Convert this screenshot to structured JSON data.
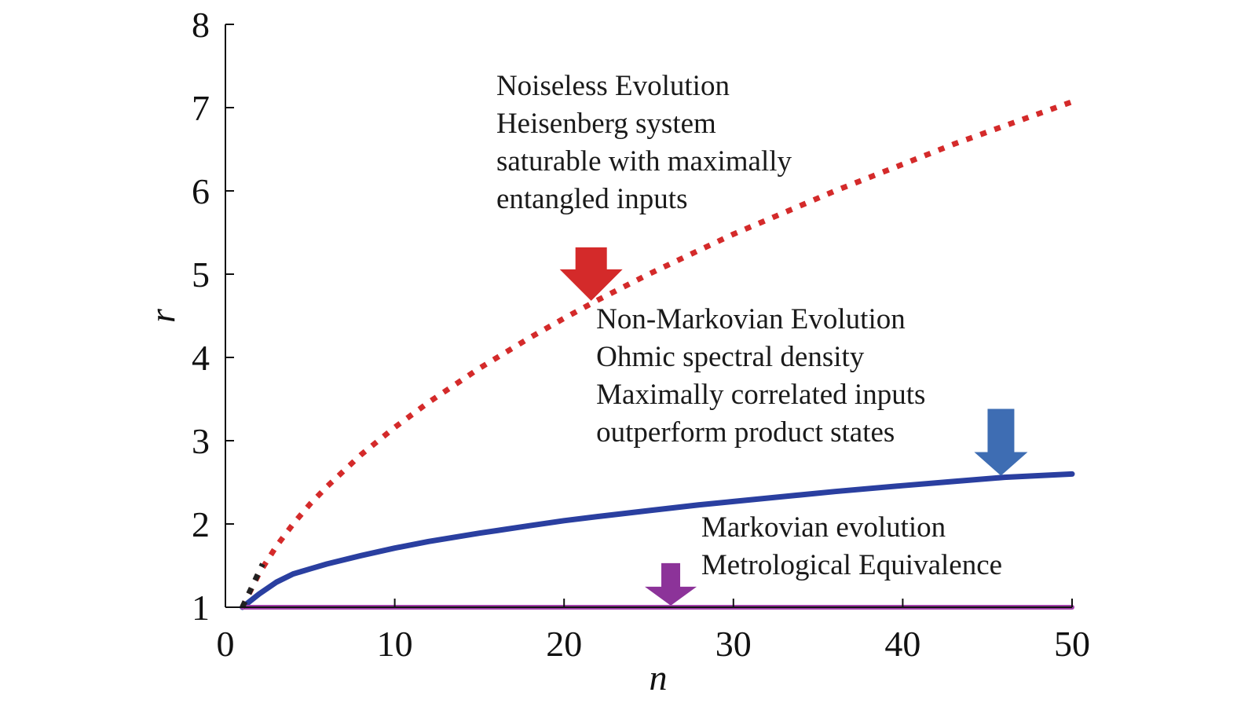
{
  "chart_data": {
    "type": "line",
    "title": "",
    "xlabel": "n",
    "ylabel": "r",
    "xlim": [
      0,
      50
    ],
    "ylim": [
      1,
      8
    ],
    "x_ticks": [
      "0",
      "10",
      "20",
      "30",
      "40",
      "50"
    ],
    "y_ticks": [
      "1",
      "2",
      "3",
      "4",
      "5",
      "6",
      "7",
      "8"
    ],
    "grid": false,
    "series": [
      {
        "style": "dotted",
        "color": "#d42a2a",
        "x": [
          1,
          2,
          3,
          4,
          5,
          6,
          8,
          10,
          12,
          15,
          18,
          20,
          22,
          25,
          28,
          30,
          33,
          36,
          40,
          43,
          46,
          50
        ],
        "y": [
          1.0,
          1.41,
          1.73,
          2.0,
          2.24,
          2.45,
          2.83,
          3.16,
          3.46,
          3.87,
          4.24,
          4.47,
          4.69,
          5.0,
          5.29,
          5.48,
          5.74,
          6.0,
          6.32,
          6.56,
          6.78,
          7.07
        ]
      },
      {
        "style": "solid",
        "color": "#2a3fa0",
        "x": [
          1,
          2,
          3,
          4,
          5,
          6,
          8,
          10,
          12,
          15,
          18,
          20,
          22,
          25,
          28,
          30,
          33,
          36,
          40,
          43,
          46,
          50
        ],
        "y": [
          1.0,
          1.16,
          1.3,
          1.4,
          1.46,
          1.52,
          1.62,
          1.71,
          1.79,
          1.89,
          1.98,
          2.04,
          2.09,
          2.16,
          2.23,
          2.27,
          2.33,
          2.39,
          2.46,
          2.51,
          2.56,
          2.6
        ]
      },
      {
        "style": "solid",
        "color": "#a040a8",
        "x": [
          1,
          50
        ],
        "y": [
          1.0,
          1.0
        ]
      },
      {
        "style": "dotted",
        "color": "#222222",
        "x": [
          1,
          2.2
        ],
        "y": [
          1.0,
          1.52
        ]
      }
    ],
    "annotations": [
      {
        "lines": [
          "Noiseless Evolution",
          "Heisenberg system",
          "saturable with maximally",
          "entangled inputs"
        ],
        "text_x": 16,
        "text_y": 7.15,
        "arrow_color": "#d42a2a",
        "arrow_x": 21.6,
        "arrow_y": 4.68
      },
      {
        "lines": [
          "Non-Markovian Evolution",
          "Ohmic spectral density",
          "Maximally correlated inputs",
          "outperform product states"
        ],
        "text_x": 21.9,
        "text_y": 4.35,
        "arrow_color": "#3e6db3",
        "arrow_x": 45.8,
        "arrow_y": 2.58
      },
      {
        "lines": [
          "Markovian evolution",
          "Metrological Equivalence"
        ],
        "text_x": 28.1,
        "text_y": 1.85,
        "arrow_color": "#8c3399",
        "arrow_x": 26.3,
        "arrow_y": 1.02
      }
    ]
  }
}
